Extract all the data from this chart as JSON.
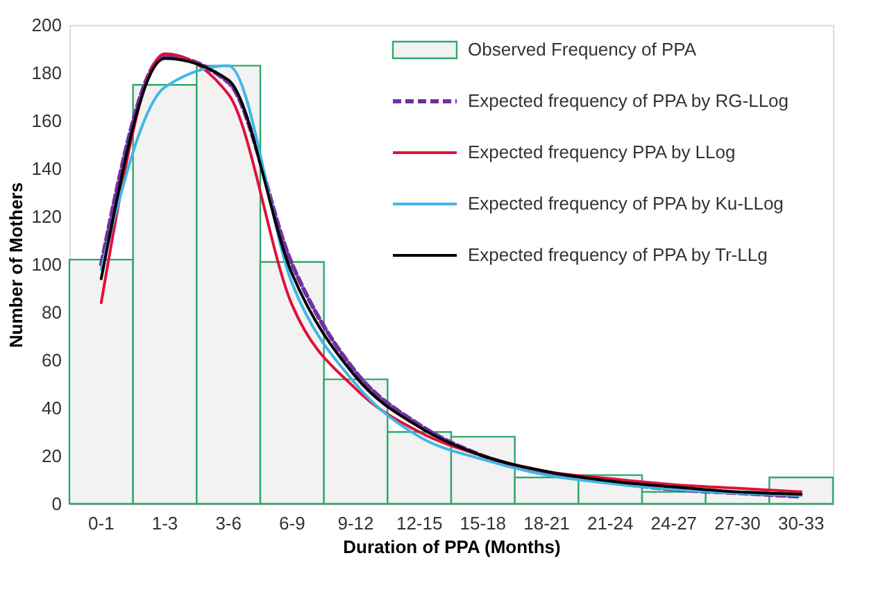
{
  "chart_data": {
    "type": "bar",
    "xlabel": "Duration of PPA (Months)",
    "ylabel": "Number of Mothers",
    "categories": [
      "0-1",
      "1-3",
      "3-6",
      "6-9",
      "9-12",
      "12-15",
      "15-18",
      "18-21",
      "21-24",
      "24-27",
      "27-30",
      "30-33"
    ],
    "series": [
      {
        "name": "Observed Frequency of PPA",
        "color": "#f2f2f2",
        "values": [
          102,
          175,
          183,
          101,
          52,
          30,
          28,
          11,
          12,
          5,
          5,
          11
        ]
      },
      {
        "name": "Expected frequency of PPA by RG-LLog",
        "type": "line",
        "line_style": "dashed",
        "color": "#7030a0",
        "values": [
          100,
          187,
          176,
          100,
          55,
          33,
          20,
          13,
          9,
          6,
          4.5,
          3
        ]
      },
      {
        "name": "Expected frequency PPA by LLog",
        "type": "line",
        "line_style": "solid",
        "color": "#e0103c",
        "values": [
          84,
          188,
          171,
          83,
          48,
          30,
          20,
          13.5,
          10.5,
          8,
          6.5,
          5
        ]
      },
      {
        "name": "Expected frequency of PPA by Ku-LLog",
        "type": "line",
        "line_style": "solid",
        "color": "#41b6e6",
        "values": [
          98,
          174,
          183,
          92,
          50,
          28,
          18.5,
          12,
          8.5,
          6,
          4.5,
          3.5
        ]
      },
      {
        "name": "Expected frequency of PPA by Tr-LLg",
        "type": "line",
        "line_style": "solid",
        "color": "#000000",
        "values": [
          94,
          186,
          177,
          96,
          53,
          32,
          20,
          13.5,
          9.5,
          7,
          5,
          4
        ]
      }
    ],
    "ylim": [
      0,
      200
    ],
    "yticks": [
      0,
      20,
      40,
      60,
      80,
      100,
      120,
      140,
      160,
      180,
      200
    ],
    "grid": false,
    "legend": "top right"
  }
}
